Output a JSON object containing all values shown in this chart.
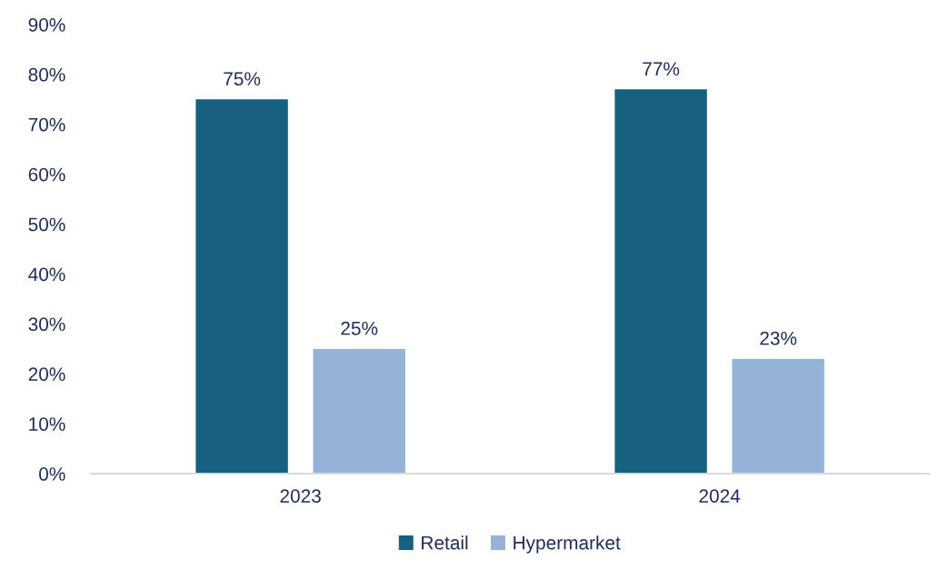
{
  "chart_data": {
    "type": "bar",
    "categories": [
      "2023",
      "2024"
    ],
    "series": [
      {
        "name": "Retail",
        "color": "#17607f",
        "values": [
          75,
          77
        ],
        "value_labels": [
          "75%",
          "77%"
        ]
      },
      {
        "name": "Hypermarket",
        "color": "#95b3d7",
        "values": [
          25,
          23
        ],
        "value_labels": [
          "25%",
          "23%"
        ]
      }
    ],
    "ylim": [
      0,
      90
    ],
    "yticks": [
      {
        "value": 0,
        "label": "0%"
      },
      {
        "value": 10,
        "label": "10%"
      },
      {
        "value": 20,
        "label": "20%"
      },
      {
        "value": 30,
        "label": "30%"
      },
      {
        "value": 40,
        "label": "40%"
      },
      {
        "value": 50,
        "label": "50%"
      },
      {
        "value": 60,
        "label": "60%"
      },
      {
        "value": 70,
        "label": "70%"
      },
      {
        "value": 80,
        "label": "80%"
      },
      {
        "value": 90,
        "label": "90%"
      }
    ],
    "grid": false,
    "legend": "bottom"
  }
}
